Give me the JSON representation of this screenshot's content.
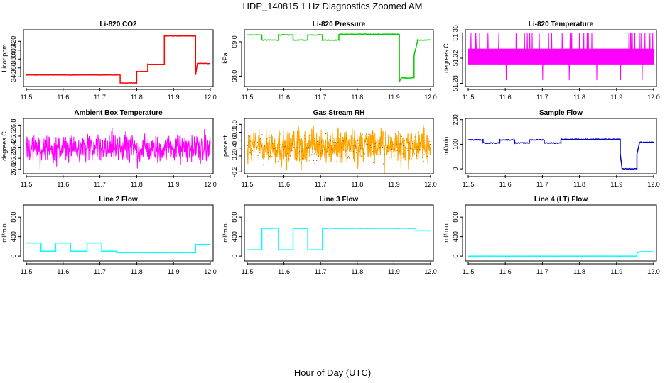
{
  "figure": {
    "title": "HDP_140815  1 Hz Diagnostics Zoomed AM",
    "xlabel": "Hour of Day (UTC)"
  },
  "chart_data": [
    {
      "type": "line",
      "title": "Li-820 CO2",
      "ylabel": "Licor ppm",
      "color": "#ff0000",
      "xlim": [
        11.5,
        12.0
      ],
      "ylim": [
        318,
        446
      ],
      "xticks": [
        "11.5",
        "11.6",
        "11.7",
        "11.8",
        "11.9",
        "12.0"
      ],
      "yticks": [
        "340",
        "360",
        "380",
        "400",
        "420"
      ],
      "noise": 0.4,
      "series": [
        {
          "x": [
            11.5,
            11.755,
            11.755,
            11.8,
            11.8,
            11.83,
            11.83,
            11.875,
            11.875,
            11.96,
            11.96,
            11.965,
            11.965,
            12.0
          ],
          "y": [
            344,
            344,
            326,
            326,
            352,
            352,
            368,
            368,
            432,
            432,
            344,
            370,
            370,
            370
          ]
        }
      ]
    },
    {
      "type": "line",
      "title": "Li-820 Pressure",
      "ylabel": "kPa",
      "color": "#00cc00",
      "xlim": [
        11.5,
        12.0
      ],
      "ylim": [
        67.7,
        69.35
      ],
      "xticks": [
        "11.5",
        "11.6",
        "11.7",
        "11.8",
        "11.9",
        "12.0"
      ],
      "yticks": [
        "68.0",
        "69.0"
      ],
      "noise": 0.008,
      "series": [
        {
          "x": [
            11.5,
            11.54,
            11.54,
            11.585,
            11.585,
            11.625,
            11.625,
            11.665,
            11.665,
            11.705,
            11.705,
            11.75,
            11.75,
            11.915,
            11.915,
            11.92,
            11.92,
            11.955,
            11.955,
            11.965,
            11.965,
            12.0
          ],
          "y": [
            69.2,
            69.2,
            69.05,
            69.05,
            69.2,
            69.2,
            69.05,
            69.05,
            69.2,
            69.2,
            69.05,
            69.05,
            69.22,
            69.22,
            67.85,
            67.95,
            67.95,
            67.95,
            68.6,
            69.05,
            69.05,
            69.05
          ]
        }
      ]
    },
    {
      "type": "line",
      "title": "Li-820 Temperature",
      "ylabel": "degrees C",
      "color": "#ff00ff",
      "xlim": [
        11.5,
        12.0
      ],
      "ylim": [
        51.275,
        51.365
      ],
      "xticks": [
        "11.5",
        "11.6",
        "11.7",
        "11.8",
        "11.9",
        "12.0"
      ],
      "yticks": [
        "51.28",
        "51.32",
        "51.36"
      ],
      "band": [
        51.31,
        51.335
      ],
      "spikes": [
        51.36,
        51.285
      ],
      "series": []
    },
    {
      "type": "line",
      "title": "Ambient Box Temperature",
      "ylabel": "degrees C",
      "color": "#ff00ff",
      "xlim": [
        11.5,
        12.0
      ],
      "ylim": [
        25.92,
        26.92
      ],
      "xticks": [
        "11.5",
        "11.6",
        "11.7",
        "11.8",
        "11.9",
        "12.0"
      ],
      "yticks": [
        "26.0",
        "26.2",
        "26.4",
        "26.6",
        "26.8"
      ],
      "band": [
        26.05,
        26.7
      ],
      "series": []
    },
    {
      "type": "line",
      "title": "Gas Stream RH",
      "ylabel": "percent",
      "color": "#ffa500",
      "xlim": [
        11.5,
        12.0
      ],
      "ylim": [
        -0.25,
        1.15
      ],
      "xticks": [
        "11.5",
        "11.6",
        "11.7",
        "11.8",
        "11.9",
        "12.0"
      ],
      "yticks": [
        "-0.2",
        "0.2",
        "0.4",
        "0.6",
        "0.8",
        "1.0"
      ],
      "band": [
        -0.15,
        1.05
      ],
      "series": []
    },
    {
      "type": "line",
      "title": "Sample Flow",
      "ylabel": "ml/min",
      "color": "#0000cd",
      "xlim": [
        11.5,
        12.0
      ],
      "ylim": [
        -20,
        205
      ],
      "xticks": [
        "11.5",
        "11.6",
        "11.7",
        "11.8",
        "11.9",
        "12.0"
      ],
      "yticks": [
        "0",
        "100",
        "200"
      ],
      "noise": 1.5,
      "series": [
        {
          "x": [
            11.5,
            11.54,
            11.54,
            11.585,
            11.585,
            11.625,
            11.625,
            11.665,
            11.665,
            11.705,
            11.705,
            11.75,
            11.75,
            11.91,
            11.91,
            11.915,
            11.915,
            11.955,
            11.955,
            11.962,
            11.962,
            12.0
          ],
          "y": [
            118,
            118,
            105,
            105,
            118,
            118,
            105,
            105,
            118,
            118,
            105,
            105,
            120,
            120,
            60,
            0,
            0,
            0,
            60,
            108,
            108,
            108
          ]
        }
      ]
    },
    {
      "type": "line",
      "title": "Line 2 Flow",
      "ylabel": "ml/min",
      "color": "#00ffff",
      "xlim": [
        11.5,
        12.0
      ],
      "ylim": [
        -100,
        1050
      ],
      "xticks": [
        "11.5",
        "11.6",
        "11.7",
        "11.8",
        "11.9",
        "12.0"
      ],
      "yticks": [
        "0",
        "400",
        "800"
      ],
      "noise": 2,
      "series": [
        {
          "x": [
            11.5,
            11.54,
            11.54,
            11.58,
            11.58,
            11.62,
            11.62,
            11.665,
            11.665,
            11.705,
            11.705,
            11.745,
            11.745,
            11.96,
            11.96,
            12.0
          ],
          "y": [
            270,
            270,
            100,
            100,
            270,
            270,
            100,
            100,
            270,
            270,
            100,
            100,
            70,
            70,
            240,
            240
          ]
        }
      ]
    },
    {
      "type": "line",
      "title": "Line 3 Flow",
      "ylabel": "ml/min",
      "color": "#00ffff",
      "xlim": [
        11.5,
        12.0
      ],
      "ylim": [
        -100,
        1050
      ],
      "xticks": [
        "11.5",
        "11.6",
        "11.7",
        "11.8",
        "11.9",
        "12.0"
      ],
      "yticks": [
        "0",
        "400",
        "800"
      ],
      "noise": 3,
      "series": [
        {
          "x": [
            11.5,
            11.54,
            11.54,
            11.585,
            11.585,
            11.625,
            11.625,
            11.665,
            11.665,
            11.705,
            11.705,
            11.96,
            11.96,
            12.0
          ],
          "y": [
            130,
            130,
            570,
            570,
            130,
            130,
            570,
            570,
            130,
            130,
            570,
            570,
            520,
            520
          ]
        }
      ]
    },
    {
      "type": "line",
      "title": "Line 4 (LT) Flow",
      "ylabel": "ml/min",
      "color": "#00ffff",
      "xlim": [
        11.5,
        12.0
      ],
      "ylim": [
        -100,
        1050
      ],
      "xticks": [
        "11.5",
        "11.6",
        "11.7",
        "11.8",
        "11.9",
        "12.0"
      ],
      "yticks": [
        "0",
        "400",
        "800"
      ],
      "noise": 1,
      "series": [
        {
          "x": [
            11.5,
            11.955,
            11.955,
            11.962,
            11.962,
            12.0
          ],
          "y": [
            0,
            0,
            60,
            90,
            90,
            90
          ]
        }
      ]
    }
  ]
}
